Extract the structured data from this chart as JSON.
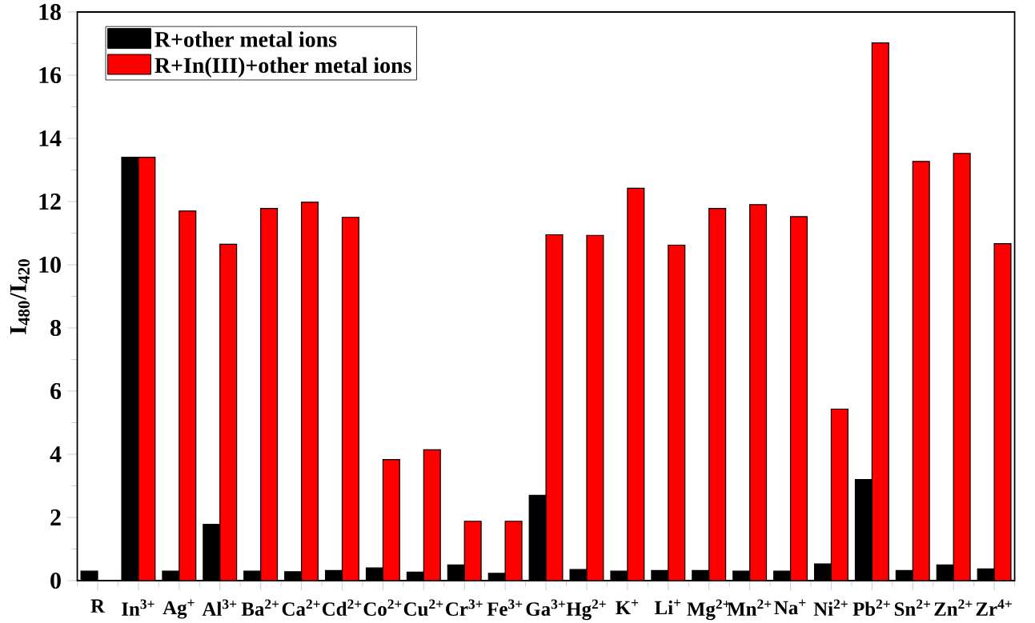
{
  "chart_data": {
    "type": "bar",
    "ylabel": "I$_{480}$/I$_{420}$",
    "categories": [
      "R",
      "In$^{3+}$",
      "Ag$^{+}$",
      "Al$^{3+}$",
      "Ba$^{2+}$",
      "Ca$^{2+}$",
      "Cd$^{2+}$",
      "Co$^{2+}$",
      "Cu$^{2+}$",
      "Cr$^{3+}$",
      "Fe$^{3+}$",
      "Ga$^{3+}$",
      "Hg$^{2+}$",
      "K$^{+}$",
      "Li$^{+}$",
      "Mg$^{2+}$",
      "Mn$^{2+}$",
      "Na$^{+}$",
      "Ni$^{2+}$",
      "Pb$^{2+}$",
      "Sn$^{2+}$",
      "Zn$^{2+}$",
      "Zr$^{4+}$"
    ],
    "series": [
      {
        "name": "R+other metal ions",
        "color": "#000000",
        "values": [
          0.3,
          13.4,
          0.3,
          1.78,
          0.3,
          0.28,
          0.32,
          0.4,
          0.27,
          0.5,
          0.23,
          2.7,
          0.35,
          0.3,
          0.32,
          0.32,
          0.3,
          0.3,
          0.53,
          3.2,
          0.32,
          0.5,
          0.37
        ]
      },
      {
        "name": "R+In(III)+other metal ions",
        "color": "#ff0000",
        "values": [
          null,
          13.4,
          11.7,
          10.65,
          11.78,
          11.98,
          11.5,
          3.83,
          4.14,
          1.88,
          1.88,
          10.95,
          10.93,
          12.42,
          10.62,
          11.78,
          11.9,
          11.52,
          5.43,
          17.02,
          13.27,
          13.52,
          10.67
        ]
      }
    ],
    "ylim": [
      0,
      18
    ],
    "yticks": [
      0,
      2,
      4,
      6,
      8,
      10,
      12,
      14,
      16,
      18
    ],
    "grid": false,
    "legend": "top left"
  }
}
